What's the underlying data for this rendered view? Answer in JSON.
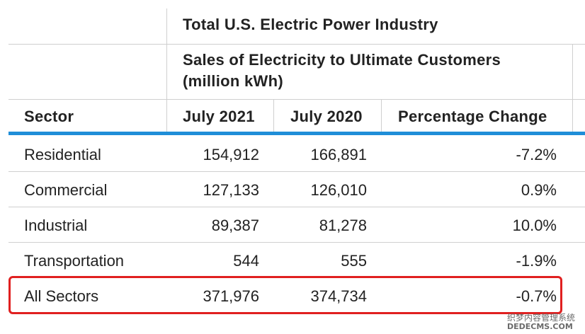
{
  "table": {
    "title": "Total U.S. Electric Power Industry",
    "subtitle_line1": "Sales of Electricity to Ultimate Customers",
    "subtitle_line2": "(million kWh)",
    "columns": [
      "Sector",
      "July 2021",
      "July 2020",
      "Percentage Change"
    ],
    "rows": [
      {
        "sector": "Residential",
        "july_2021": "154,912",
        "july_2020": "166,891",
        "pct_change": "-7.2%"
      },
      {
        "sector": "Commercial",
        "july_2021": "127,133",
        "july_2020": "126,010",
        "pct_change": "0.9%"
      },
      {
        "sector": "Industrial",
        "july_2021": "89,387",
        "july_2020": "81,278",
        "pct_change": "10.0%"
      },
      {
        "sector": "Transportation",
        "july_2021": "544",
        "july_2020": "555",
        "pct_change": "-1.9%"
      },
      {
        "sector": "All Sectors",
        "july_2021": "371,976",
        "july_2020": "374,734",
        "pct_change": "-0.7%"
      }
    ]
  },
  "chart_data": {
    "type": "table",
    "title": "Total U.S. Electric Power Industry",
    "subtitle": "Sales of Electricity to Ultimate Customers (million kWh)",
    "columns": [
      "Sector",
      "July 2021",
      "July 2020",
      "Percentage Change"
    ],
    "categories": [
      "Residential",
      "Commercial",
      "Industrial",
      "Transportation",
      "All Sectors"
    ],
    "series": [
      {
        "name": "July 2021",
        "values": [
          154912,
          127133,
          89387,
          544,
          371976
        ]
      },
      {
        "name": "July 2020",
        "values": [
          166891,
          126010,
          81278,
          555,
          374734
        ]
      },
      {
        "name": "Percentage Change",
        "values": [
          -7.2,
          0.9,
          10.0,
          -1.9,
          -0.7
        ]
      }
    ]
  },
  "watermark": {
    "line1": "织梦内容管理系统",
    "line2": "DEDECMS.COM"
  },
  "colors": {
    "accent_rule": "#1f8ed8",
    "highlight_border": "#e02020",
    "grid": "#cfcfcf"
  }
}
